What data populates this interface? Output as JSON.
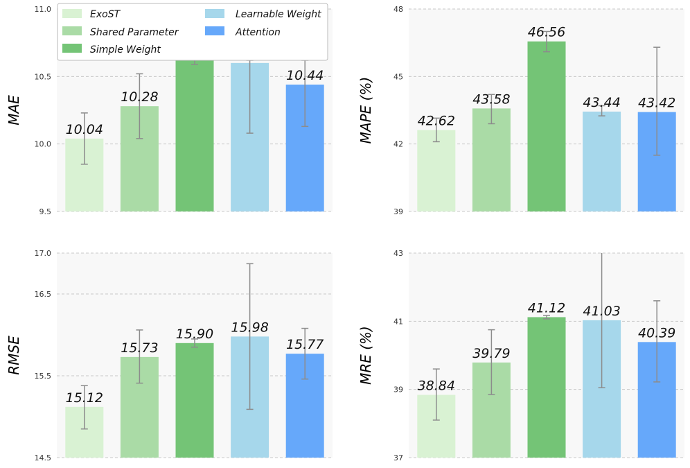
{
  "colors": {
    "background": "#f8f8f8",
    "grid": "#c8c8c8",
    "error_bar": "#8c8c8c",
    "bars": [
      "#d9f2d3",
      "#aadba6",
      "#74c476",
      "#a6d7eb",
      "#66a8fa"
    ]
  },
  "legend": {
    "items": [
      "ExoST",
      "Shared Parameter",
      "Simple Weight",
      "Learnable Weight",
      "Attention"
    ]
  },
  "chart_data": [
    {
      "type": "bar",
      "ylabel": "MAE",
      "categories": [
        "ExoST",
        "Shared Parameter",
        "Simple Weight",
        "Learnable Weight",
        "Attention"
      ],
      "values": [
        10.04,
        10.28,
        10.62,
        10.6,
        10.44
      ],
      "value_labels": [
        "10.04",
        "10.28",
        "",
        "",
        "10.44"
      ],
      "err_low": [
        9.85,
        10.04,
        10.59,
        10.08,
        10.13
      ],
      "err_high": [
        10.23,
        10.52,
        10.63,
        10.62,
        10.62
      ],
      "ylim": [
        9.5,
        11.0
      ],
      "yticks": [
        "9.5",
        "10.0",
        "10.5",
        "11.0"
      ],
      "grid": true,
      "legend": "top-left"
    },
    {
      "type": "bar",
      "ylabel": "MAPE (%)",
      "categories": [
        "ExoST",
        "Shared Parameter",
        "Simple Weight",
        "Learnable Weight",
        "Attention"
      ],
      "values": [
        42.62,
        43.58,
        46.56,
        43.44,
        43.42
      ],
      "value_labels": [
        "42.62",
        "43.58",
        "46.56",
        "43.44",
        "43.42"
      ],
      "err_low": [
        42.1,
        42.9,
        46.1,
        43.25,
        41.5
      ],
      "err_high": [
        43.15,
        44.2,
        47.0,
        43.7,
        46.3
      ],
      "ylim": [
        39,
        48
      ],
      "yticks": [
        "39",
        "42",
        "45",
        "48"
      ],
      "grid": true
    },
    {
      "type": "bar",
      "ylabel": "RMSE",
      "categories": [
        "ExoST",
        "Shared Parameter",
        "Simple Weight",
        "Learnable Weight",
        "Attention"
      ],
      "values": [
        15.12,
        15.73,
        15.9,
        15.98,
        15.77
      ],
      "value_labels": [
        "15.12",
        "15.73",
        "15.90",
        "15.98",
        "15.77"
      ],
      "err_low": [
        14.85,
        15.41,
        15.85,
        15.09,
        15.46
      ],
      "err_high": [
        15.38,
        16.06,
        15.95,
        16.87,
        16.08
      ],
      "ylim": [
        14.5,
        17.0
      ],
      "yticks": [
        "14.5",
        "15.5",
        "16.5",
        "17.0"
      ],
      "grid": true
    },
    {
      "type": "bar",
      "ylabel": "MRE (%)",
      "categories": [
        "ExoST",
        "Shared Parameter",
        "Simple Weight",
        "Learnable Weight",
        "Attention"
      ],
      "values": [
        38.84,
        39.79,
        41.12,
        41.03,
        40.39
      ],
      "value_labels": [
        "38.84",
        "39.79",
        "41.12",
        "41.03",
        "40.39"
      ],
      "err_low": [
        38.1,
        38.85,
        41.07,
        39.05,
        39.22
      ],
      "err_high": [
        39.6,
        40.75,
        41.17,
        43.05,
        41.6
      ],
      "ylim": [
        37,
        43
      ],
      "yticks": [
        "37",
        "39",
        "41",
        "43"
      ],
      "grid": true
    }
  ]
}
